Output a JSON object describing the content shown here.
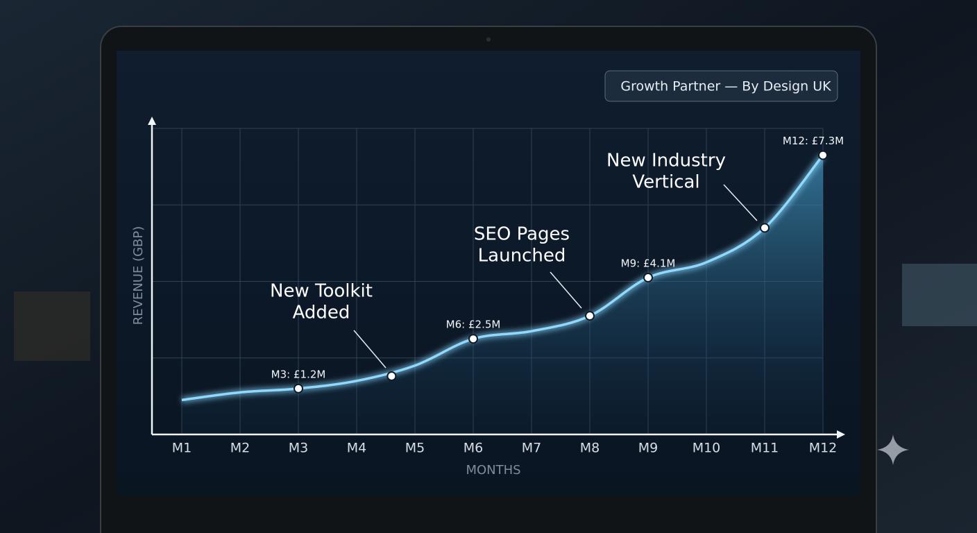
{
  "chart_data": {
    "type": "line",
    "badge": "Growth Partner — By Design UK",
    "x_label": "MONTHS",
    "y_label": "REVENUE (GBP)",
    "categories": [
      "M1",
      "M2",
      "M3",
      "M4",
      "M5",
      "M6",
      "M7",
      "M8",
      "M9",
      "M10",
      "M11",
      "M12"
    ],
    "values": [
      0.9,
      1.1,
      1.2,
      1.4,
      1.8,
      2.5,
      2.7,
      3.1,
      4.1,
      4.5,
      5.4,
      7.3
    ],
    "value_labels": [
      null,
      null,
      "M3: £1.2M",
      null,
      null,
      "M6: £2.5M",
      null,
      null,
      "M9: £4.1M",
      null,
      null,
      "M12: £7.3M"
    ],
    "color": "#8fd9ff",
    "ylim": [
      0,
      8
    ],
    "grid": true,
    "annotations": [
      {
        "lines": [
          "New Toolkit",
          "Added"
        ]
      },
      {
        "lines": [
          "SEO Pages",
          "Launched"
        ]
      },
      {
        "lines": [
          "New Industry",
          "Vertical"
        ]
      }
    ]
  }
}
